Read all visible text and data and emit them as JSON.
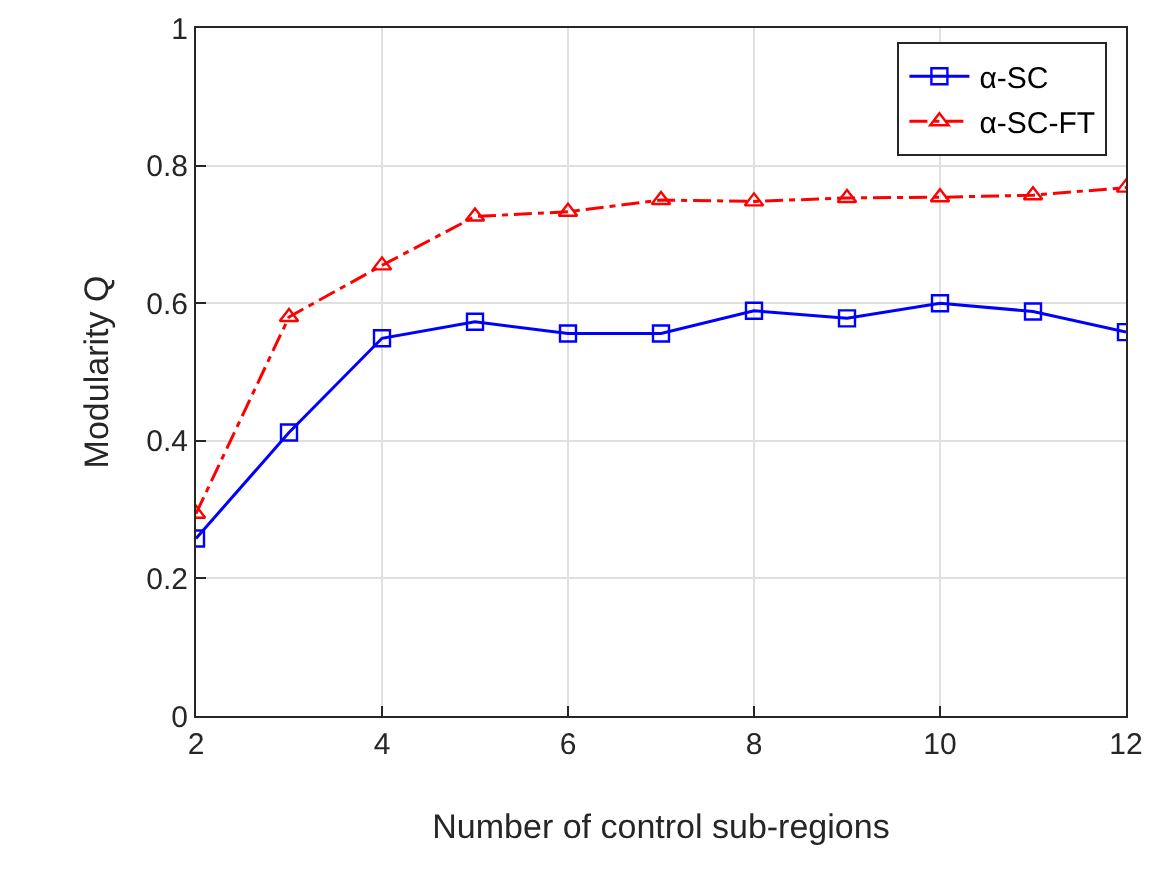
{
  "chart_data": {
    "type": "line",
    "xlabel": "Number of control sub-regions",
    "ylabel": "Modularity Q",
    "x": [
      2,
      3,
      4,
      5,
      6,
      7,
      8,
      9,
      10,
      11,
      12
    ],
    "series": [
      {
        "name": "α-SC",
        "color": "#0000ff",
        "marker": "square",
        "line_style": "solid",
        "values": [
          0.258,
          0.412,
          0.549,
          0.573,
          0.556,
          0.556,
          0.589,
          0.578,
          0.6,
          0.588,
          0.558
        ]
      },
      {
        "name": "α-SC-FT",
        "color": "#ff0000",
        "marker": "triangle",
        "line_style": "dashdot",
        "values": [
          0.294,
          0.58,
          0.655,
          0.726,
          0.733,
          0.75,
          0.748,
          0.753,
          0.754,
          0.757,
          0.768
        ]
      }
    ],
    "xlim": [
      2,
      12
    ],
    "xticks": [
      2,
      4,
      6,
      8,
      10,
      12
    ],
    "ylim": [
      0,
      1
    ],
    "yticks": [
      0,
      0.2,
      0.4,
      0.6,
      0.8,
      1
    ],
    "grid": true,
    "legend": "top right"
  }
}
